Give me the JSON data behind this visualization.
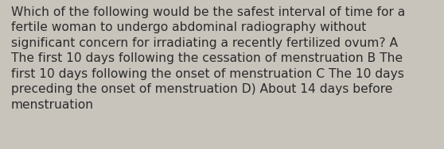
{
  "text": "Which of the following would be the safest interval of time for a\nfertile woman to undergo abdominal radiography without\nsignificant concern for irradiating a recently fertilized ovum? A\nThe first 10 days following the cessation of menstruation B The\nfirst 10 days following the onset of menstruation C The 10 days\npreceding the onset of menstruation D) About 14 days before\nmenstruation",
  "background_color": "#c8c4bc",
  "text_color": "#2b2b2b",
  "font_size": 11.2,
  "fig_width": 5.58,
  "fig_height": 1.88,
  "dpi": 100
}
